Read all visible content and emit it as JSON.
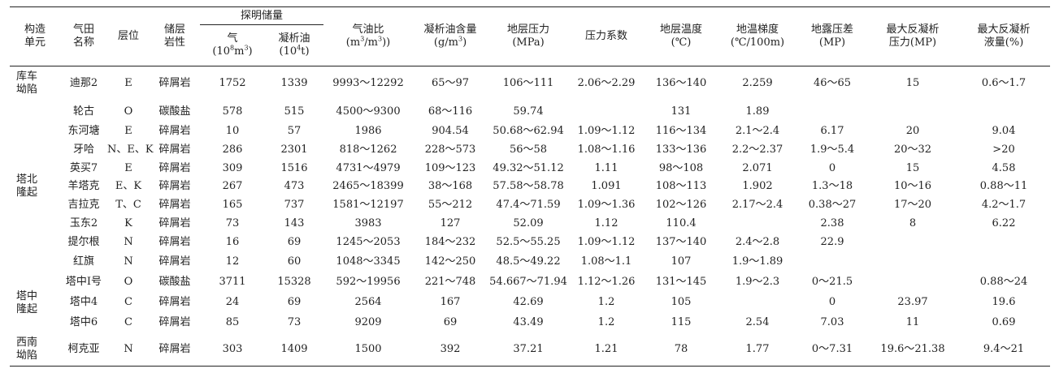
{
  "headers": {
    "unit": [
      "构造",
      "单元"
    ],
    "field": [
      "气田",
      "名称"
    ],
    "layer": "层位",
    "lith": [
      "储层",
      "岩性"
    ],
    "reserves": "探明储量",
    "gas": [
      "气",
      "(10",
      "8",
      "m",
      "3",
      ")"
    ],
    "cond": [
      "凝析油",
      "(10",
      "4",
      "t)"
    ],
    "gor": [
      "气油比",
      "(m",
      "3",
      "/m",
      "3",
      ")"
    ],
    "content": [
      "凝析油含量",
      "(g/m",
      "3",
      ")"
    ],
    "pressure": [
      "地层压力",
      "(MPa)"
    ],
    "coef": "压力系数",
    "temp": [
      "地层温度",
      "(℃)"
    ],
    "grad": [
      "地温梯度",
      "(℃/100m)"
    ],
    "dew": [
      "地露压差",
      "(MP)"
    ],
    "maxp": [
      "最大反凝析",
      "压力(MP)"
    ],
    "maxl": [
      "最大反凝析",
      "液量(%)"
    ]
  },
  "groups": [
    {
      "name": [
        "库车",
        "坳陷"
      ],
      "rows": [
        [
          "迪那2",
          "E",
          "碎屑岩",
          "1752",
          "1339",
          "9993～12292",
          "65～97",
          "106～111",
          "2.06～2.29",
          "136～140",
          "2.259",
          "46～65",
          "15",
          "0.6～1.7"
        ]
      ]
    },
    {
      "name": [
        "塔北",
        "隆起"
      ],
      "rows": [
        [
          "轮古",
          "O",
          "碳酸盐",
          "578",
          "515",
          "4500～9300",
          "68～116",
          "59.74",
          "",
          "131",
          "1.89",
          "",
          "",
          ""
        ],
        [
          "东河塘",
          "E",
          "碎屑岩",
          "10",
          "57",
          "1986",
          "904.54",
          "50.68～62.94",
          "1.09～1.12",
          "116～134",
          "2.1～2.4",
          "6.17",
          "20",
          "9.04"
        ],
        [
          "牙哈",
          "N、E、K",
          "碎屑岩",
          "286",
          "2301",
          "818～1262",
          "228～573",
          "56～58",
          "1.08～1.16",
          "133～136",
          "2.2～2.37",
          "1.9～5.4",
          "20～32",
          ">20"
        ],
        [
          "英买7",
          "E",
          "碎屑岩",
          "309",
          "1516",
          "4731～4979",
          "109～123",
          "49.32～51.12",
          "1.11",
          "98～108",
          "2.071",
          "0",
          "15",
          "4.58"
        ],
        [
          "羊塔克",
          "E、K",
          "碎屑岩",
          "267",
          "473",
          "2465～18399",
          "38～168",
          "57.58～58.78",
          "1.091",
          "108～113",
          "1.902",
          "1.3～18",
          "10～16",
          "0.88～11"
        ],
        [
          "吉拉克",
          "T、C",
          "碎屑岩",
          "165",
          "737",
          "1581～12197",
          "55～212",
          "47.4～71.59",
          "1.09～1.36",
          "102～126",
          "2.17～2.4",
          "0.38～27",
          "17～20",
          "4.2～1.7"
        ],
        [
          "玉东2",
          "K",
          "碎屑岩",
          "73",
          "143",
          "3983",
          "127",
          "52.09",
          "1.12",
          "110.4",
          "",
          "2.38",
          "8",
          "6.22"
        ],
        [
          "提尔根",
          "N",
          "碎屑岩",
          "16",
          "69",
          "1245～2053",
          "184～232",
          "52.5～55.25",
          "1.09～1.12",
          "137～140",
          "2.4～2.8",
          "22.9",
          "",
          ""
        ],
        [
          "红旗",
          "N",
          "碎屑岩",
          "12",
          "60",
          "1048～3345",
          "142～250",
          "48.5～49.22",
          "1.08～1.1",
          "107",
          "1.9～1.89",
          "",
          "",
          ""
        ]
      ]
    },
    {
      "name": [
        "塔中",
        "隆起"
      ],
      "rows": [
        [
          "塔中Ⅰ号",
          "O",
          "碳酸盐",
          "3711",
          "15328",
          "592～19956",
          "221～748",
          "54.667～71.94",
          "1.12～1.26",
          "131～145",
          "1.9～2.3",
          "0～21.5",
          "",
          "0.88～24"
        ],
        [
          "塔中4",
          "C",
          "碎屑岩",
          "24",
          "69",
          "2564",
          "167",
          "42.69",
          "1.2",
          "105",
          "",
          "0",
          "23.97",
          "19.6"
        ],
        [
          "塔中6",
          "C",
          "碎屑岩",
          "85",
          "73",
          "9209",
          "69",
          "43.49",
          "1.2",
          "115",
          "2.54",
          "7.03",
          "11",
          "0.69"
        ]
      ]
    },
    {
      "name": [
        "西南",
        "坳陷"
      ],
      "rows": [
        [
          "柯克亚",
          "N",
          "碎屑岩",
          "303",
          "1409",
          "1500",
          "392",
          "37.21",
          "1.21",
          "78",
          "1.77",
          "0～7.31",
          "19.6～21.38",
          "9.4～21"
        ]
      ]
    }
  ]
}
